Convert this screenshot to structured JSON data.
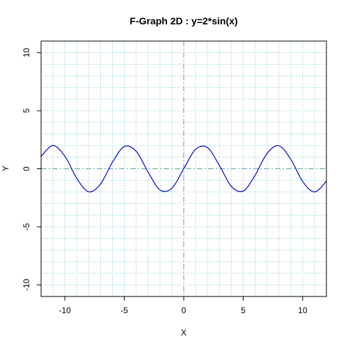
{
  "chart_data": {
    "type": "line",
    "title": "F-Graph 2D : y=2*sin(x)",
    "xlabel": "X",
    "ylabel": "Y",
    "xlim": [
      -12,
      12
    ],
    "ylim": [
      -11,
      11
    ],
    "x_ticks": [
      -10,
      -5,
      0,
      5,
      10
    ],
    "y_ticks": [
      -10,
      -5,
      0,
      5,
      10
    ],
    "x_tick_labels": [
      "-10",
      "-5",
      "0",
      "5",
      "10"
    ],
    "y_tick_labels": [
      "-10",
      "-5",
      "0",
      "5",
      "10"
    ],
    "minor_grid_step": 1,
    "grid": true,
    "series": [
      {
        "function": "2*sin(x)",
        "x": [
          -12,
          -11,
          -10,
          -9,
          -8,
          -7,
          -6,
          -5,
          -4,
          -3,
          -2,
          -1,
          0,
          1,
          2,
          3,
          4,
          5,
          6,
          7,
          8,
          9,
          10,
          11,
          12
        ],
        "values": [
          1.07,
          2.0,
          1.09,
          -0.82,
          -1.98,
          -1.31,
          0.56,
          1.92,
          1.51,
          -0.28,
          -1.82,
          -1.68,
          0,
          1.68,
          1.82,
          0.28,
          -1.51,
          -1.92,
          -0.56,
          1.31,
          1.98,
          0.82,
          -1.09,
          -2.0,
          -1.07
        ]
      }
    ]
  },
  "colors": {
    "curve": "#0000cc",
    "grid": "#7fc6c6",
    "axis_lines": "#5f9ea0",
    "frame": "#000000"
  }
}
